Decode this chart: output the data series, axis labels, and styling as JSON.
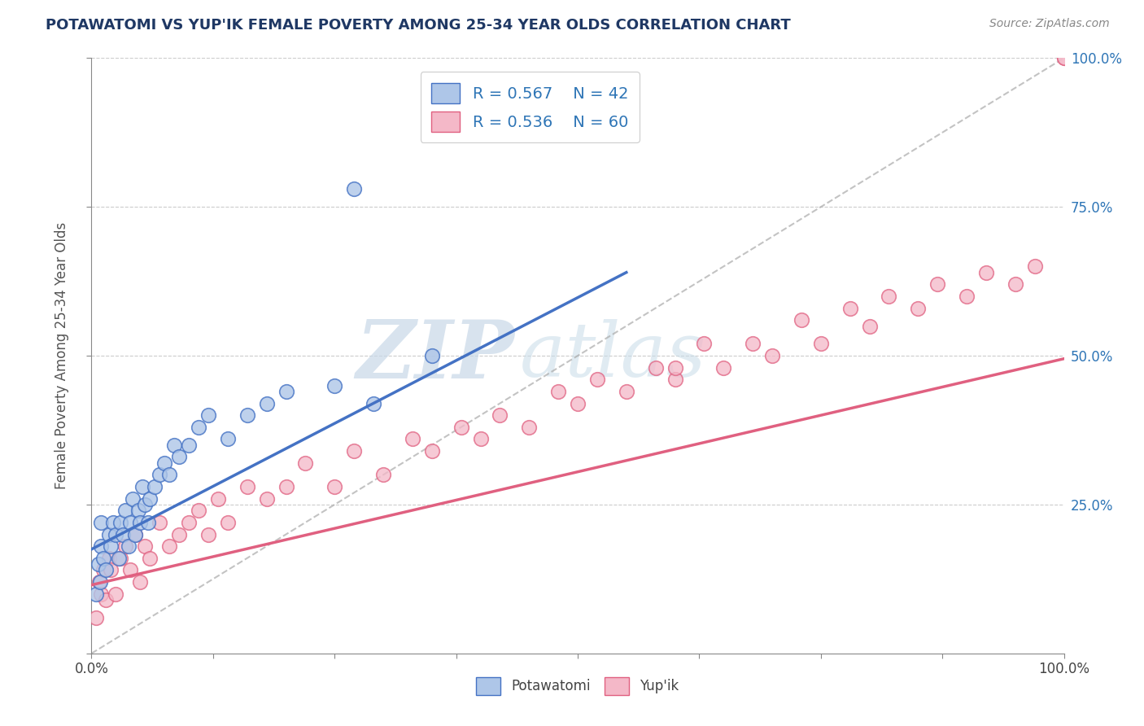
{
  "title": "POTAWATOMI VS YUP'IK FEMALE POVERTY AMONG 25-34 YEAR OLDS CORRELATION CHART",
  "source": "Source: ZipAtlas.com",
  "ylabel": "Female Poverty Among 25-34 Year Olds",
  "xlim": [
    0,
    1
  ],
  "ylim": [
    0,
    1.0
  ],
  "background_color": "#ffffff",
  "potawatomi_color": "#aec6e8",
  "yupik_color": "#f4b8c8",
  "potawatomi_line_color": "#4472c4",
  "yupik_line_color": "#e06080",
  "title_color": "#1f3864",
  "legend_text_color": "#2e75b6",
  "R_potawatomi": 0.567,
  "N_potawatomi": 42,
  "R_yupik": 0.536,
  "N_yupik": 60,
  "pot_x": [
    0.005,
    0.007,
    0.009,
    0.01,
    0.01,
    0.012,
    0.015,
    0.018,
    0.02,
    0.022,
    0.025,
    0.028,
    0.03,
    0.032,
    0.035,
    0.038,
    0.04,
    0.042,
    0.045,
    0.048,
    0.05,
    0.052,
    0.055,
    0.058,
    0.06,
    0.065,
    0.07,
    0.075,
    0.08,
    0.085,
    0.09,
    0.1,
    0.11,
    0.12,
    0.14,
    0.16,
    0.18,
    0.2,
    0.25,
    0.29,
    0.35,
    0.27
  ],
  "pot_y": [
    0.1,
    0.15,
    0.12,
    0.18,
    0.22,
    0.16,
    0.14,
    0.2,
    0.18,
    0.22,
    0.2,
    0.16,
    0.22,
    0.2,
    0.24,
    0.18,
    0.22,
    0.26,
    0.2,
    0.24,
    0.22,
    0.28,
    0.25,
    0.22,
    0.26,
    0.28,
    0.3,
    0.32,
    0.3,
    0.35,
    0.33,
    0.35,
    0.38,
    0.4,
    0.36,
    0.4,
    0.42,
    0.44,
    0.45,
    0.42,
    0.5,
    0.78
  ],
  "yup_x": [
    0.005,
    0.008,
    0.01,
    0.012,
    0.015,
    0.018,
    0.02,
    0.025,
    0.03,
    0.035,
    0.04,
    0.045,
    0.05,
    0.055,
    0.06,
    0.07,
    0.08,
    0.09,
    0.1,
    0.11,
    0.12,
    0.13,
    0.14,
    0.16,
    0.18,
    0.2,
    0.22,
    0.25,
    0.27,
    0.3,
    0.33,
    0.35,
    0.38,
    0.4,
    0.42,
    0.45,
    0.48,
    0.5,
    0.52,
    0.55,
    0.58,
    0.6,
    0.63,
    0.65,
    0.68,
    0.7,
    0.73,
    0.75,
    0.78,
    0.8,
    0.82,
    0.85,
    0.87,
    0.9,
    0.92,
    0.95,
    0.97,
    1.0,
    1.0,
    0.6
  ],
  "yup_y": [
    0.06,
    0.12,
    0.1,
    0.14,
    0.09,
    0.16,
    0.14,
    0.1,
    0.16,
    0.18,
    0.14,
    0.2,
    0.12,
    0.18,
    0.16,
    0.22,
    0.18,
    0.2,
    0.22,
    0.24,
    0.2,
    0.26,
    0.22,
    0.28,
    0.26,
    0.28,
    0.32,
    0.28,
    0.34,
    0.3,
    0.36,
    0.34,
    0.38,
    0.36,
    0.4,
    0.38,
    0.44,
    0.42,
    0.46,
    0.44,
    0.48,
    0.46,
    0.52,
    0.48,
    0.52,
    0.5,
    0.56,
    0.52,
    0.58,
    0.55,
    0.6,
    0.58,
    0.62,
    0.6,
    0.64,
    0.62,
    0.65,
    1.0,
    1.0,
    0.48
  ],
  "pot_line_x0": 0.0,
  "pot_line_y0": 0.175,
  "pot_line_x1": 0.55,
  "pot_line_y1": 0.64,
  "yup_line_x0": 0.0,
  "yup_line_y0": 0.115,
  "yup_line_x1": 1.0,
  "yup_line_y1": 0.495
}
